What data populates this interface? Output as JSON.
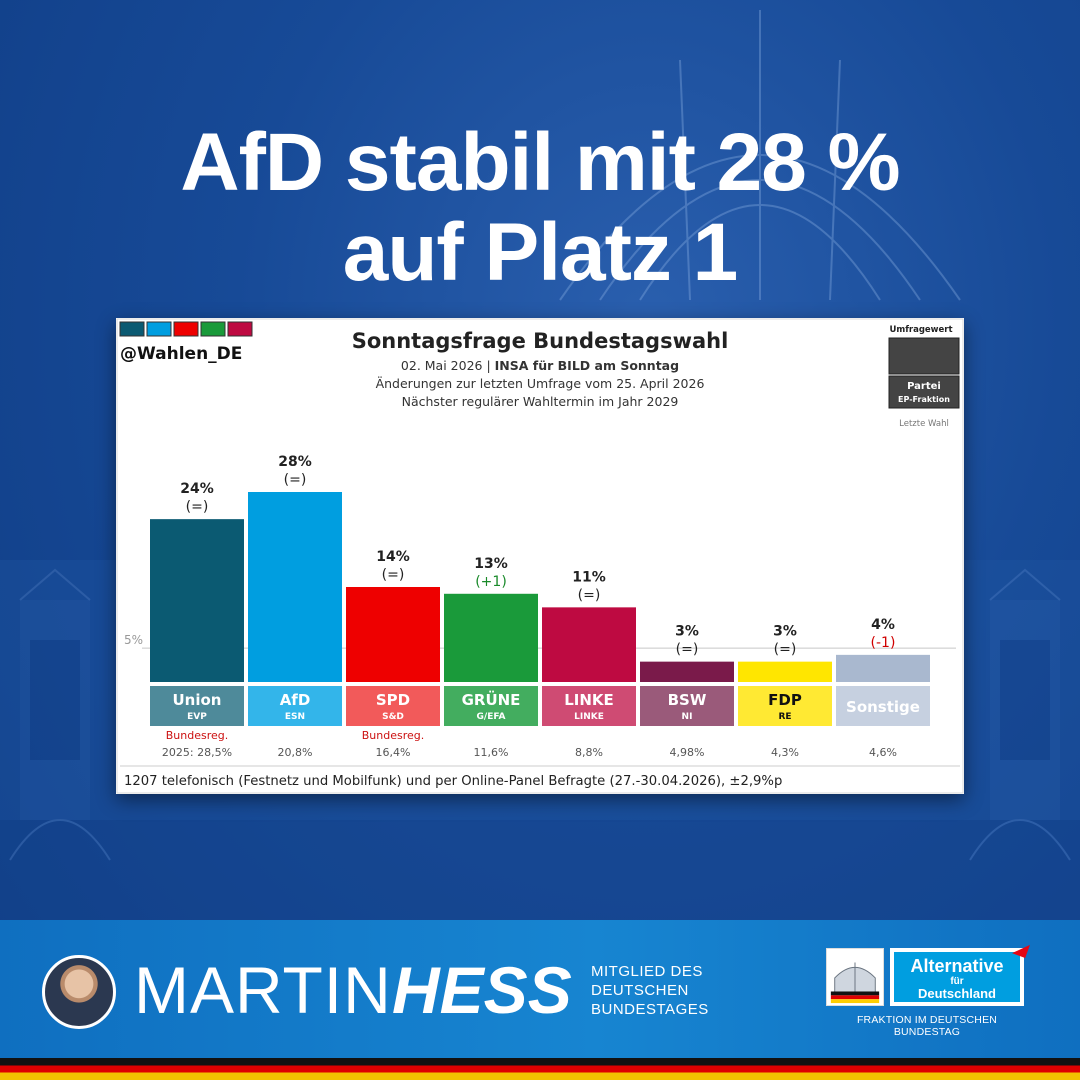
{
  "headline": {
    "line1": "AfD stabil mit 28 %",
    "line2": "auf Platz 1"
  },
  "chart_data": {
    "type": "bar",
    "title": "Sonntagsfrage Bundestagswahl",
    "source_handle": "@Wahlen_DE",
    "subtitle_date": "02. Mai 2026",
    "subtitle_separator": "|",
    "subtitle_institute": "INSA für BILD am Sonntag",
    "subtitle_changes": "Änderungen zur letzten Umfrage vom 25. April 2026",
    "subtitle_next": "Nächster regulärer Wahltermin im Jahr 2029",
    "legend": {
      "value_label": "Umfragewert",
      "party_label": "Partei",
      "group_label": "EP-Fraktion",
      "last_label": "Letzte Wahl"
    },
    "threshold_label": "5%",
    "threshold_value": 5,
    "ylim": [
      0,
      28
    ],
    "categories": [
      "Union",
      "AfD",
      "SPD",
      "GRÜNE",
      "LINKE",
      "BSW",
      "FDP",
      "Sonstige"
    ],
    "groups": [
      "EVP",
      "ESN",
      "S&D",
      "G/EFA",
      "LINKE",
      "NI",
      "RE",
      ""
    ],
    "values": [
      24,
      28,
      14,
      13,
      11,
      3,
      3,
      4
    ],
    "value_labels": [
      "24%",
      "28%",
      "14%",
      "13%",
      "11%",
      "3%",
      "3%",
      "4%"
    ],
    "changes": [
      "(=)",
      "(=)",
      "(=)",
      "(+1)",
      "(=)",
      "(=)",
      "(=)",
      "(-1)"
    ],
    "change_colors": [
      "#222222",
      "#222222",
      "#222222",
      "#1a8a2a",
      "#222222",
      "#222222",
      "#222222",
      "#d00000"
    ],
    "colors": [
      "#0b5a72",
      "#009ee0",
      "#ee0000",
      "#1a9a3a",
      "#be0a41",
      "#7a1a4a",
      "#ffe600",
      "#a9b8cf"
    ],
    "label_colors": [
      "#4e8a9a",
      "#33b5ea",
      "#f25a5a",
      "#43ad5f",
      "#cf4b73",
      "#9a5a7a",
      "#ffe933",
      "#c6d0e0"
    ],
    "label_text_colors": [
      "#ffffff",
      "#ffffff",
      "#ffffff",
      "#ffffff",
      "#ffffff",
      "#ffffff",
      "#111111",
      "#ffffff"
    ],
    "government_flags": [
      "Bundesreg.",
      "",
      "Bundesreg.",
      "",
      "",
      "",
      "",
      ""
    ],
    "last_election": [
      "2025: 28,5%",
      "20,8%",
      "16,4%",
      "11,6%",
      "8,8%",
      "4,98%",
      "4,3%",
      "4,6%"
    ],
    "footnote": "1207 telefonisch (Festnetz und Mobilfunk) und per Online-Panel Befragte (27.-30.04.2026), ±2,9%p",
    "logo_colors": [
      "#0b5a72",
      "#009ee0",
      "#ee0000",
      "#1a9a3a",
      "#be0a41"
    ]
  },
  "footer": {
    "first_name": "MARTIN",
    "last_name": "HESS",
    "member_lines": [
      "MITGLIED DES",
      "DEUTSCHEN",
      "BUNDESTAGES"
    ],
    "party_word1": "Alternative",
    "party_word2": "für",
    "party_word3": "Deutschland",
    "fraktion": "FRAKTION IM DEUTSCHEN BUNDESTAG"
  }
}
